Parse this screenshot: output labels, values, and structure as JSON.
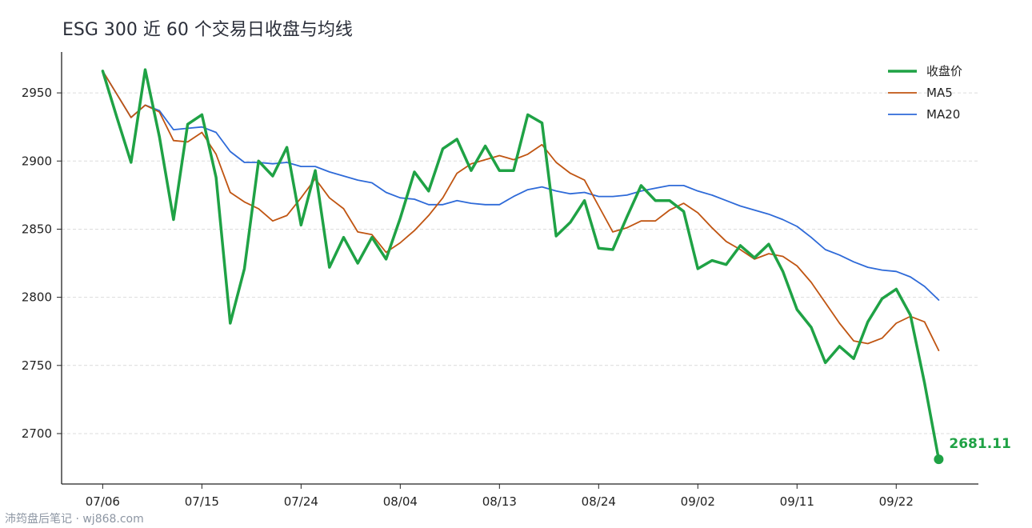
{
  "chart_data": {
    "type": "line",
    "title": "ESG 300 近 60 个交易日收盘与均线",
    "xlabel": "",
    "ylabel": "",
    "x_ticks": [
      {
        "index": 0,
        "label": "07/06"
      },
      {
        "index": 7,
        "label": "07/15"
      },
      {
        "index": 14,
        "label": "07/24"
      },
      {
        "index": 21,
        "label": "08/04"
      },
      {
        "index": 28,
        "label": "08/13"
      },
      {
        "index": 35,
        "label": "08/24"
      },
      {
        "index": 42,
        "label": "09/02"
      },
      {
        "index": 49,
        "label": "09/11"
      },
      {
        "index": 56,
        "label": "09/22"
      }
    ],
    "y_ticks": [
      2700,
      2750,
      2800,
      2850,
      2900,
      2950
    ],
    "ylim": [
      2663,
      2980
    ],
    "xlim": [
      -2.9,
      61.8
    ],
    "grid": "horizontal-dashed",
    "legend_position": "top-right",
    "series": [
      {
        "name": "收盘价",
        "color": "#1fa245",
        "width": 3.5,
        "values": [
          2966,
          2932,
          2899,
          2967,
          2918,
          2857,
          2927,
          2934,
          2888,
          2781,
          2821,
          2900,
          2889,
          2910,
          2853,
          2893,
          2822,
          2844,
          2825,
          2844,
          2828,
          2858,
          2892,
          2878,
          2909,
          2916,
          2893,
          2911,
          2893,
          2893,
          2934,
          2928,
          2845,
          2855,
          2871,
          2836,
          2835,
          2859,
          2882,
          2871,
          2871,
          2863,
          2821,
          2827,
          2824,
          2838,
          2829,
          2839,
          2819,
          2791,
          2778,
          2752,
          2764,
          2755,
          2782,
          2799,
          2806,
          2787,
          2737,
          2681.11
        ]
      },
      {
        "name": "MA5",
        "color": "#c05512",
        "width": 1.8,
        "values": [
          2966,
          2949,
          2932,
          2941,
          2936,
          2915,
          2914,
          2921,
          2905,
          2877,
          2870,
          2865,
          2856,
          2860,
          2873,
          2887,
          2873,
          2865,
          2848,
          2846,
          2833,
          2840,
          2849,
          2860,
          2873,
          2891,
          2898,
          2901,
          2904,
          2901,
          2905,
          2912,
          2899,
          2891,
          2886,
          2867,
          2848,
          2851,
          2856,
          2856,
          2864,
          2869,
          2862,
          2851,
          2841,
          2835,
          2828,
          2832,
          2830,
          2823,
          2811,
          2796,
          2781,
          2768,
          2766,
          2770,
          2781,
          2786,
          2782,
          2761
        ]
      },
      {
        "name": "MA20",
        "color": "#2e6ad8",
        "width": 1.8,
        "values": [
          2966,
          2949,
          2932,
          2941,
          2937,
          2923,
          2924,
          2925,
          2921,
          2907,
          2899,
          2899,
          2898,
          2899,
          2896,
          2896,
          2892,
          2889,
          2886,
          2884,
          2877,
          2873,
          2872,
          2868,
          2868,
          2871,
          2869,
          2868,
          2868,
          2874,
          2879,
          2881,
          2878,
          2876,
          2877,
          2874,
          2874,
          2875,
          2878,
          2880,
          2882,
          2882,
          2878,
          2875,
          2871,
          2867,
          2864,
          2861,
          2857,
          2852,
          2844,
          2835,
          2831,
          2826,
          2822,
          2820,
          2819,
          2815,
          2808,
          2798
        ]
      }
    ],
    "end_label": {
      "index": 59,
      "value": 2681.11,
      "text": "2681.11",
      "color": "#1fa245"
    }
  },
  "footer": {
    "text": "沛筠盘后笔记 · wj868.com"
  }
}
